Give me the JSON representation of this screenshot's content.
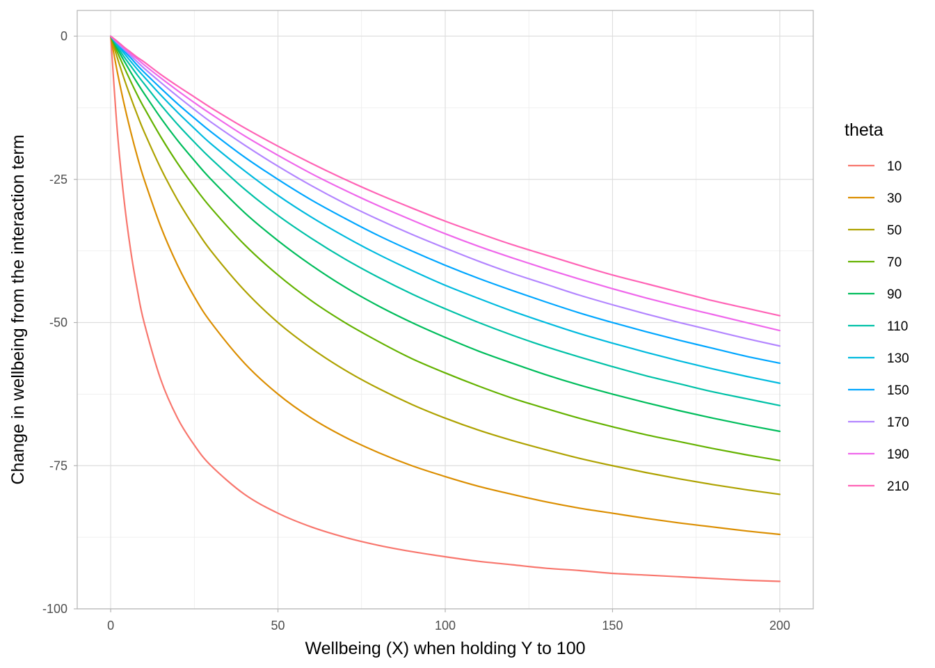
{
  "chart_data": {
    "type": "line",
    "title": "",
    "xlabel": "Wellbeing (X) when holding Y to 100",
    "ylabel": "Change in wellbeing from the interaction term",
    "xlim": [
      -10,
      210
    ],
    "ylim": [
      -100,
      4.5
    ],
    "x_ticks": [
      0,
      50,
      100,
      150,
      200
    ],
    "y_ticks": [
      0,
      -25,
      -50,
      -75,
      -100
    ],
    "x_tick_labels": [
      "0",
      "50",
      "100",
      "150",
      "200"
    ],
    "y_tick_labels": [
      "0",
      "-25",
      "-50",
      "-75",
      "-100"
    ],
    "grid": true,
    "legend": {
      "title": "theta",
      "position": "right"
    },
    "x": [
      0,
      2,
      4,
      6,
      8,
      10,
      15,
      20,
      25,
      30,
      40,
      50,
      60,
      70,
      80,
      90,
      100,
      110,
      120,
      130,
      140,
      150,
      160,
      170,
      180,
      190,
      200
    ],
    "series": [
      {
        "name": "10",
        "color": "#F8766D",
        "values": [
          0,
          -16.7,
          -28.6,
          -37.5,
          -44.4,
          -50.0,
          -60.0,
          -66.7,
          -71.4,
          -75.0,
          -80.0,
          -83.3,
          -85.7,
          -87.5,
          -88.9,
          -90.0,
          -90.9,
          -91.7,
          -92.3,
          -92.9,
          -93.3,
          -93.8,
          -94.1,
          -94.4,
          -94.7,
          -95.0,
          -95.2
        ]
      },
      {
        "name": "30",
        "color": "#DB8E00",
        "values": [
          0,
          -6.3,
          -11.8,
          -16.7,
          -21.1,
          -25.0,
          -33.3,
          -40.0,
          -45.5,
          -50.0,
          -57.1,
          -62.5,
          -66.7,
          -70.0,
          -72.7,
          -75.0,
          -76.9,
          -78.6,
          -80.0,
          -81.3,
          -82.4,
          -83.3,
          -84.2,
          -85.0,
          -85.7,
          -86.4,
          -87.0
        ]
      },
      {
        "name": "50",
        "color": "#AEA200",
        "values": [
          0,
          -3.8,
          -7.4,
          -10.7,
          -13.8,
          -16.7,
          -23.1,
          -28.6,
          -33.3,
          -37.5,
          -44.4,
          -50.0,
          -54.5,
          -58.3,
          -61.5,
          -64.3,
          -66.7,
          -68.8,
          -70.6,
          -72.2,
          -73.7,
          -75.0,
          -76.2,
          -77.3,
          -78.3,
          -79.2,
          -80.0
        ]
      },
      {
        "name": "70",
        "color": "#64B200",
        "values": [
          0,
          -2.8,
          -5.4,
          -7.9,
          -10.3,
          -12.5,
          -17.6,
          -22.2,
          -26.3,
          -30.0,
          -36.4,
          -41.7,
          -46.2,
          -50.0,
          -53.3,
          -56.3,
          -58.8,
          -61.1,
          -63.2,
          -65.0,
          -66.7,
          -68.2,
          -69.6,
          -70.8,
          -72.0,
          -73.1,
          -74.1
        ]
      },
      {
        "name": "90",
        "color": "#00BD5C",
        "values": [
          0,
          -2.2,
          -4.3,
          -6.3,
          -8.2,
          -10.0,
          -14.3,
          -18.2,
          -21.7,
          -25.0,
          -30.8,
          -35.7,
          -40.0,
          -43.8,
          -47.1,
          -50.0,
          -52.6,
          -55.0,
          -57.1,
          -59.1,
          -60.9,
          -62.5,
          -64.0,
          -65.4,
          -66.7,
          -67.9,
          -69.0
        ]
      },
      {
        "name": "110",
        "color": "#00C1A7",
        "values": [
          0,
          -1.8,
          -3.6,
          -5.2,
          -6.8,
          -8.3,
          -12.0,
          -15.4,
          -18.5,
          -21.4,
          -26.7,
          -31.3,
          -35.3,
          -38.9,
          -42.1,
          -45.0,
          -47.6,
          -50.0,
          -52.2,
          -54.2,
          -56.0,
          -57.7,
          -59.3,
          -60.7,
          -62.1,
          -63.3,
          -64.5
        ]
      },
      {
        "name": "130",
        "color": "#00BADE",
        "values": [
          0,
          -1.5,
          -3.0,
          -4.4,
          -5.8,
          -7.1,
          -10.3,
          -13.3,
          -16.1,
          -18.8,
          -23.5,
          -27.8,
          -31.6,
          -35.0,
          -38.1,
          -40.9,
          -43.5,
          -45.8,
          -48.0,
          -50.0,
          -51.9,
          -53.6,
          -55.2,
          -56.7,
          -58.1,
          -59.4,
          -60.6
        ]
      },
      {
        "name": "150",
        "color": "#00A6FF",
        "values": [
          0,
          -1.3,
          -2.6,
          -3.8,
          -5.1,
          -6.3,
          -9.1,
          -11.8,
          -14.3,
          -16.7,
          -21.1,
          -25.0,
          -28.6,
          -31.8,
          -34.8,
          -37.5,
          -40.0,
          -42.3,
          -44.4,
          -46.4,
          -48.3,
          -50.0,
          -51.6,
          -53.1,
          -54.5,
          -55.9,
          -57.1
        ]
      },
      {
        "name": "170",
        "color": "#B385FF",
        "values": [
          0,
          -1.2,
          -2.3,
          -3.4,
          -4.5,
          -5.6,
          -8.1,
          -10.5,
          -12.8,
          -15.0,
          -19.0,
          -22.7,
          -26.1,
          -29.2,
          -32.0,
          -34.6,
          -37.0,
          -39.3,
          -41.4,
          -43.3,
          -45.2,
          -46.9,
          -48.5,
          -50.0,
          -51.4,
          -52.8,
          -54.1
        ]
      },
      {
        "name": "190",
        "color": "#EF67EB",
        "values": [
          0,
          -1.0,
          -2.0,
          -3.1,
          -4.0,
          -5.0,
          -7.3,
          -9.5,
          -11.6,
          -13.6,
          -17.4,
          -20.8,
          -24.0,
          -26.9,
          -29.6,
          -32.1,
          -34.5,
          -36.7,
          -38.7,
          -40.6,
          -42.4,
          -44.1,
          -45.7,
          -47.2,
          -48.6,
          -50.0,
          -51.4
        ]
      },
      {
        "name": "210",
        "color": "#FF63B6",
        "values": [
          0,
          -0.9,
          -1.9,
          -2.8,
          -3.7,
          -4.5,
          -6.7,
          -8.7,
          -10.6,
          -12.5,
          -16.0,
          -19.2,
          -22.2,
          -25.0,
          -27.6,
          -30.0,
          -32.3,
          -34.4,
          -36.4,
          -38.2,
          -40.0,
          -41.7,
          -43.2,
          -44.7,
          -46.2,
          -47.5,
          -48.8
        ]
      }
    ]
  }
}
